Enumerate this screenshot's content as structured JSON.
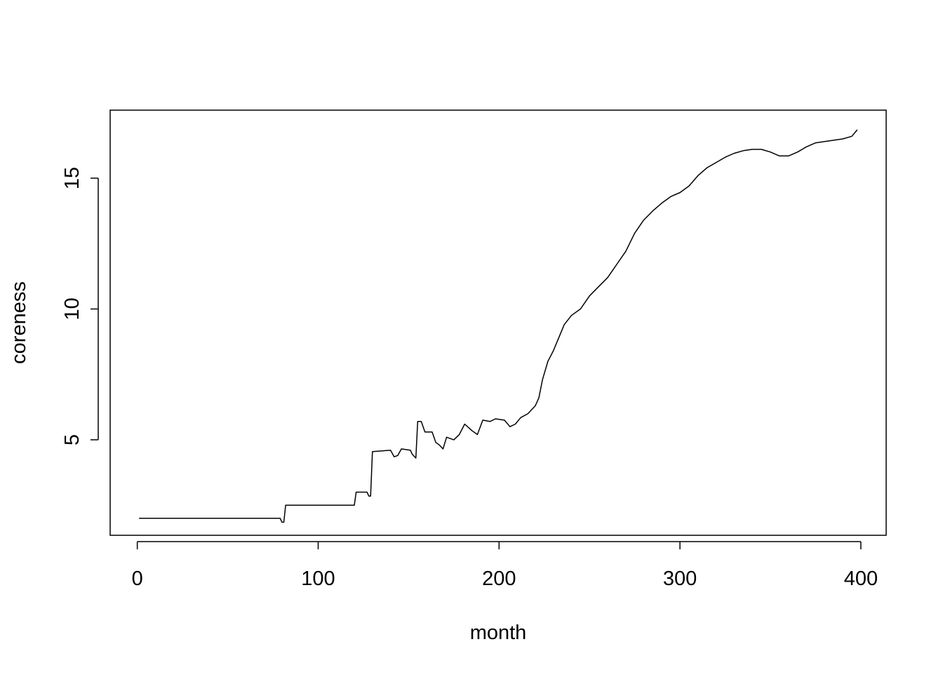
{
  "chart_data": {
    "type": "line",
    "title": "",
    "xlabel": "month",
    "ylabel": "coreness",
    "xlim": [
      -15,
      414
    ],
    "ylim": [
      1.35,
      17.6
    ],
    "xticks": [
      0,
      100,
      200,
      300,
      400
    ],
    "xtick_labels": [
      "0",
      "100",
      "200",
      "300",
      "400"
    ],
    "yticks": [
      5,
      10,
      15
    ],
    "ytick_labels": [
      "5",
      "10",
      "15"
    ],
    "grid": false,
    "legend": "none",
    "line_color": "#000000",
    "series": [
      {
        "points": [
          [
            1,
            2.0
          ],
          [
            79,
            2.0
          ],
          [
            80,
            1.85
          ],
          [
            81,
            1.85
          ],
          [
            82,
            2.5
          ],
          [
            120,
            2.5
          ],
          [
            121,
            3.0
          ],
          [
            127,
            3.0
          ],
          [
            128,
            2.85
          ],
          [
            129,
            2.85
          ],
          [
            130,
            4.55
          ],
          [
            140,
            4.6
          ],
          [
            142,
            4.35
          ],
          [
            144,
            4.4
          ],
          [
            146,
            4.65
          ],
          [
            151,
            4.6
          ],
          [
            152,
            4.45
          ],
          [
            154,
            4.3
          ],
          [
            155,
            5.7
          ],
          [
            157,
            5.7
          ],
          [
            159,
            5.3
          ],
          [
            163,
            5.3
          ],
          [
            165,
            4.9
          ],
          [
            167,
            4.8
          ],
          [
            169,
            4.65
          ],
          [
            171,
            5.1
          ],
          [
            175,
            5.0
          ],
          [
            178,
            5.2
          ],
          [
            181,
            5.6
          ],
          [
            185,
            5.35
          ],
          [
            188,
            5.2
          ],
          [
            191,
            5.75
          ],
          [
            195,
            5.7
          ],
          [
            198,
            5.8
          ],
          [
            203,
            5.75
          ],
          [
            206,
            5.5
          ],
          [
            209,
            5.6
          ],
          [
            212,
            5.85
          ],
          [
            216,
            6.0
          ],
          [
            220,
            6.3
          ],
          [
            222,
            6.6
          ],
          [
            224,
            7.3
          ],
          [
            227,
            8.0
          ],
          [
            230,
            8.4
          ],
          [
            233,
            8.9
          ],
          [
            236,
            9.4
          ],
          [
            240,
            9.75
          ],
          [
            245,
            10.0
          ],
          [
            250,
            10.5
          ],
          [
            255,
            10.85
          ],
          [
            260,
            11.2
          ],
          [
            265,
            11.7
          ],
          [
            270,
            12.2
          ],
          [
            275,
            12.9
          ],
          [
            280,
            13.4
          ],
          [
            285,
            13.75
          ],
          [
            290,
            14.05
          ],
          [
            295,
            14.3
          ],
          [
            300,
            14.45
          ],
          [
            305,
            14.7
          ],
          [
            310,
            15.1
          ],
          [
            315,
            15.4
          ],
          [
            320,
            15.6
          ],
          [
            325,
            15.8
          ],
          [
            330,
            15.95
          ],
          [
            335,
            16.05
          ],
          [
            340,
            16.1
          ],
          [
            345,
            16.1
          ],
          [
            350,
            16.0
          ],
          [
            355,
            15.85
          ],
          [
            360,
            15.85
          ],
          [
            365,
            16.0
          ],
          [
            370,
            16.2
          ],
          [
            375,
            16.35
          ],
          [
            380,
            16.4
          ],
          [
            385,
            16.45
          ],
          [
            390,
            16.5
          ],
          [
            395,
            16.6
          ],
          [
            398,
            16.85
          ]
        ]
      }
    ]
  }
}
